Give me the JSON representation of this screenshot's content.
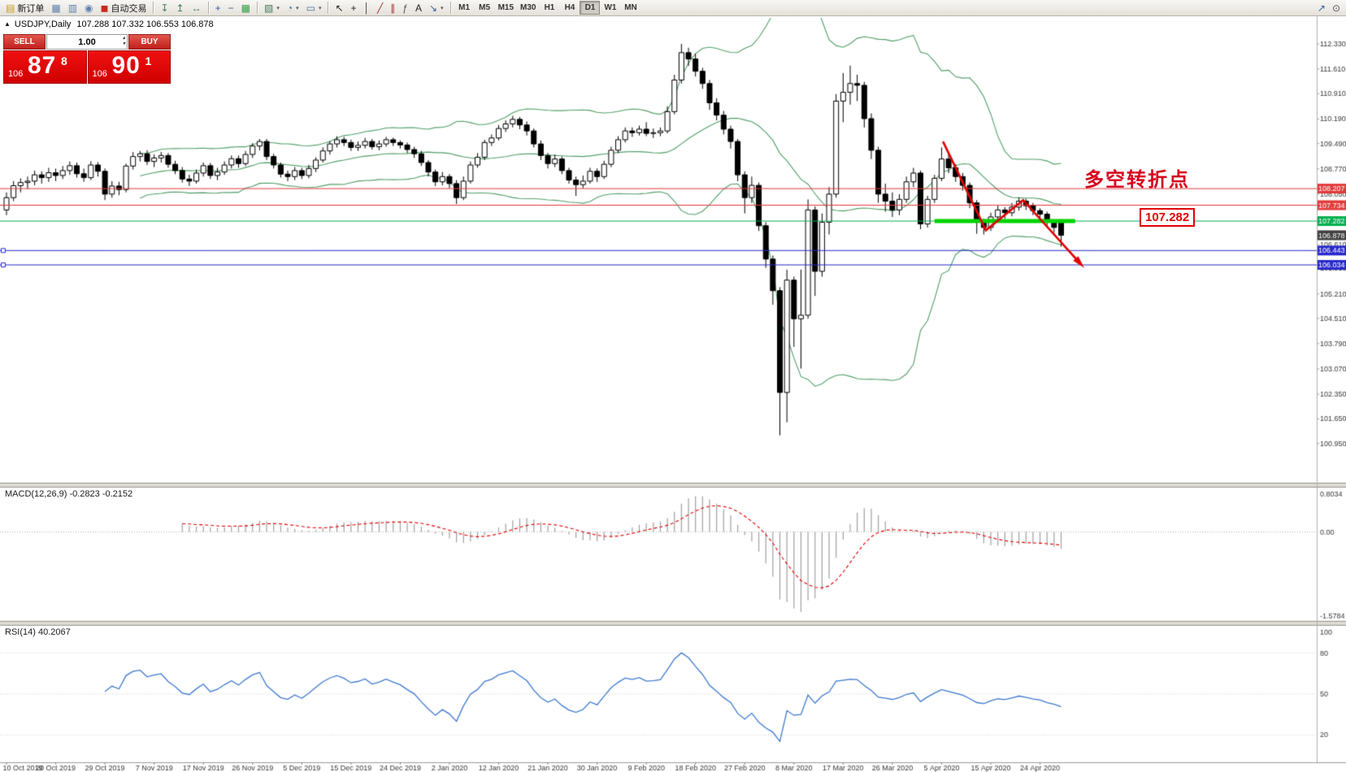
{
  "toolbar": {
    "groups": [
      {
        "name": "file",
        "items": [
          {
            "name": "new-order-button",
            "icon": "new-order-icon",
            "glyph": "▤",
            "color": "#c99a1c",
            "label": "新订单"
          },
          {
            "name": "charts-button",
            "icon": "chart-window-icon",
            "glyph": "▦",
            "color": "#5d7fae"
          },
          {
            "name": "market-watch-button",
            "icon": "market-watch-icon",
            "glyph": "▥",
            "color": "#5d7fae"
          },
          {
            "name": "data-window-button",
            "icon": "data-window-icon",
            "glyph": "◉",
            "color": "#5d7fae"
          },
          {
            "name": "autotrading-button",
            "icon": "autotrading-icon",
            "glyph": "◼",
            "color": "#cc2a1e",
            "label": "自动交易"
          }
        ]
      },
      {
        "name": "indicators",
        "items": [
          {
            "name": "indicators-button",
            "icon": "indicators-icon",
            "glyph": "↧",
            "color": "#4a7d5a"
          },
          {
            "name": "objects-list-button",
            "icon": "objects-list-icon",
            "glyph": "↥",
            "color": "#4a7d5a"
          },
          {
            "name": "windows-button",
            "icon": "windows-icon",
            "glyph": "↔",
            "color": "#4a7d5a"
          }
        ]
      },
      {
        "name": "zoom",
        "items": [
          {
            "name": "zoom-in-button",
            "icon": "zoom-in-icon",
            "glyph": "+",
            "color": "#2e5e9e"
          },
          {
            "name": "zoom-out-button",
            "icon": "zoom-out-icon",
            "glyph": "−",
            "color": "#2e5e9e"
          },
          {
            "name": "tile-windows-button",
            "icon": "tile-windows-icon",
            "glyph": "▦",
            "color": "#2f9e44"
          }
        ]
      },
      {
        "name": "chart-mgmt",
        "items": [
          {
            "name": "new-chart-button",
            "icon": "new-chart-icon",
            "glyph": "▧",
            "color": "#4a7d5a",
            "dropdown": true
          },
          {
            "name": "period-button",
            "icon": "clock-icon",
            "glyph": "◔",
            "color": "#4a6d9a",
            "dropdown": true
          },
          {
            "name": "template-button",
            "icon": "template-icon",
            "glyph": "▭",
            "color": "#4a6d9a",
            "dropdown": true
          }
        ]
      },
      {
        "name": "drawing",
        "items": [
          {
            "name": "cursor-button",
            "icon": "cursor-icon",
            "glyph": "↖",
            "color": "#222222"
          },
          {
            "name": "crosshair-button",
            "icon": "crosshair-icon",
            "glyph": "+",
            "color": "#222222"
          },
          {
            "name": "vertical-line-button",
            "icon": "vertical-line-icon",
            "glyph": "│",
            "color": "#333333"
          },
          {
            "name": "trendline-button",
            "icon": "trendline-icon",
            "glyph": "╱",
            "color": "#a03030"
          },
          {
            "name": "channel-button",
            "icon": "equidistant-channel-icon",
            "glyph": "∥",
            "color": "#a03030"
          },
          {
            "name": "fibonacci-button",
            "icon": "fibonacci-icon",
            "glyph": "ƒ",
            "color": "#555555"
          },
          {
            "name": "text-button",
            "icon": "text-icon",
            "glyph": "A",
            "color": "#222222"
          },
          {
            "name": "arrows-button",
            "icon": "arrows-icon",
            "glyph": "↘",
            "color": "#2e5e9e",
            "dropdown": true
          }
        ]
      }
    ],
    "timeframes": [
      "M1",
      "M5",
      "M15",
      "M30",
      "H1",
      "H4",
      "D1",
      "W1",
      "MN"
    ],
    "active_timeframe": "D1",
    "right_items": [
      {
        "name": "send-button",
        "icon": "send-icon",
        "glyph": "↗",
        "color": "#2e5e9e"
      },
      {
        "name": "search-button",
        "icon": "search-icon",
        "glyph": "⊙",
        "color": "#555555"
      }
    ]
  },
  "icons": {
    "collapse_panel": "▲",
    "spinner_up": "▴",
    "spinner_down": "▾"
  },
  "chart": {
    "title_symbol": "USDJPY,Daily",
    "title_ohlc": "107.288 107.332 106.553 106.878"
  },
  "trade_panel": {
    "sell_label": "SELL",
    "buy_label": "BUY",
    "volume": "1.00",
    "sell_price_prefix": "106",
    "sell_price_main": "87",
    "sell_price_sup": "8",
    "buy_price_prefix": "106",
    "buy_price_main": "90",
    "buy_price_sup": "1"
  },
  "indicators": {
    "macd_header": "MACD(12,26,9) -0.2823 -0.2152",
    "rsi_header": "RSI(14) 40.2067"
  },
  "annotations": {
    "turning_point": "多空转折点",
    "price_callout": "107.282"
  },
  "chart_data": {
    "type": "candlestick",
    "symbol": "USDJPY",
    "timeframe": "Daily",
    "current": {
      "open": 107.288,
      "high": 107.332,
      "low": 106.553,
      "close": 106.878
    },
    "y_axis_labels": [
      112.33,
      111.61,
      110.91,
      110.19,
      109.49,
      108.77,
      108.05,
      107.33,
      106.61,
      105.93,
      105.21,
      104.51,
      103.79,
      103.07,
      102.35,
      101.65,
      100.95
    ],
    "price_levels": {
      "resistance": [
        {
          "price": 108.207,
          "color": "#e23b3b"
        },
        {
          "price": 107.734,
          "color": "#e23b3b"
        }
      ],
      "support_green": {
        "price": 107.282,
        "color": "#00b050"
      },
      "support_blue": [
        {
          "price": 106.443,
          "color": "#2929cc"
        },
        {
          "price": 106.034,
          "color": "#2929cc"
        }
      ],
      "current_price": {
        "price": 106.878,
        "tag_color": "#3f3f3f"
      }
    },
    "bollinger": {
      "period": 20,
      "deviation": 2,
      "color": "#52a06a"
    },
    "macd": {
      "fast": 12,
      "slow": 26,
      "signal": 9,
      "value": -0.2823,
      "signal_value": -0.2152,
      "scale_labels": [
        "0.8034",
        "0.00",
        "-1.5784"
      ],
      "bar_color": "#a0a0a0",
      "signal_color": "#e00000"
    },
    "rsi": {
      "period": 14,
      "value": 40.2067,
      "levels": [
        80,
        50,
        20
      ],
      "scale_labels": [
        "100",
        "80",
        "50",
        "20"
      ],
      "line_color": "#3f7ad1"
    },
    "trend_arrow": {
      "color": "#e00000",
      "points_ip": [
        [
          133.2,
          109.55
        ],
        [
          139.3,
          107.02
        ],
        [
          144.6,
          107.88
        ],
        [
          152.6,
          106.1
        ]
      ]
    },
    "support_segment": {
      "price": 107.282,
      "from_i": 132.0,
      "to_i": 152.0,
      "color": "#00d300"
    },
    "x_ticks": [
      "10 Oct 2019",
      "20 Oct 2019",
      "29 Oct 2019",
      "7 Nov 2019",
      "17 Nov 2019",
      "26 Nov 2019",
      "5 Dec 2019",
      "15 Dec 2019",
      "24 Dec 2019",
      "2 Jan 2020",
      "12 Jan 2020",
      "21 Jan 2020",
      "30 Jan 2020",
      "9 Feb 2020",
      "18 Feb 2020",
      "27 Feb 2020",
      "8 Mar 2020",
      "17 Mar 2020",
      "26 Mar 2020",
      "5 Apr 2020",
      "15 Apr 2020",
      "24 Apr 2020"
    ],
    "x_tick_every": 7,
    "candles": [
      [
        107.6,
        108.1,
        107.45,
        107.95
      ],
      [
        107.95,
        108.42,
        107.85,
        108.29
      ],
      [
        108.29,
        108.5,
        108.1,
        108.38
      ],
      [
        108.38,
        108.55,
        108.2,
        108.42
      ],
      [
        108.42,
        108.72,
        108.3,
        108.6
      ],
      [
        108.6,
        108.7,
        108.35,
        108.52
      ],
      [
        108.52,
        108.8,
        108.4,
        108.66
      ],
      [
        108.66,
        108.78,
        108.42,
        108.58
      ],
      [
        108.58,
        108.85,
        108.48,
        108.72
      ],
      [
        108.72,
        108.98,
        108.6,
        108.86
      ],
      [
        108.86,
        108.95,
        108.52,
        108.63
      ],
      [
        108.63,
        108.78,
        108.4,
        108.52
      ],
      [
        108.52,
        108.99,
        108.45,
        108.88
      ],
      [
        108.88,
        108.96,
        108.55,
        108.7
      ],
      [
        108.7,
        108.78,
        107.88,
        108.05
      ],
      [
        108.05,
        108.42,
        107.95,
        108.28
      ],
      [
        108.28,
        108.4,
        108.02,
        108.18
      ],
      [
        108.18,
        108.92,
        108.1,
        108.85
      ],
      [
        108.85,
        109.25,
        108.75,
        109.12
      ],
      [
        109.12,
        109.28,
        108.98,
        109.2
      ],
      [
        109.2,
        109.3,
        108.88,
        108.98
      ],
      [
        108.98,
        109.18,
        108.82,
        109.08
      ],
      [
        109.08,
        109.25,
        108.95,
        109.15
      ],
      [
        109.15,
        109.22,
        108.8,
        108.9
      ],
      [
        108.9,
        109.0,
        108.62,
        108.72
      ],
      [
        108.72,
        108.82,
        108.38,
        108.48
      ],
      [
        108.48,
        108.6,
        108.28,
        108.42
      ],
      [
        108.42,
        108.75,
        108.35,
        108.65
      ],
      [
        108.65,
        108.95,
        108.55,
        108.86
      ],
      [
        108.86,
        108.94,
        108.48,
        108.58
      ],
      [
        108.58,
        108.8,
        108.45,
        108.68
      ],
      [
        108.68,
        108.98,
        108.6,
        108.88
      ],
      [
        108.88,
        109.15,
        108.78,
        109.06
      ],
      [
        109.06,
        109.15,
        108.8,
        108.92
      ],
      [
        108.92,
        109.28,
        108.85,
        109.18
      ],
      [
        109.18,
        109.5,
        109.08,
        109.42
      ],
      [
        109.42,
        109.62,
        109.3,
        109.55
      ],
      [
        109.55,
        109.62,
        109.02,
        109.12
      ],
      [
        109.12,
        109.2,
        108.78,
        108.88
      ],
      [
        108.88,
        108.95,
        108.52,
        108.62
      ],
      [
        108.62,
        108.72,
        108.42,
        108.55
      ],
      [
        108.55,
        108.82,
        108.45,
        108.72
      ],
      [
        108.72,
        108.8,
        108.48,
        108.58
      ],
      [
        108.58,
        108.88,
        108.5,
        108.78
      ],
      [
        108.78,
        109.1,
        108.68,
        109.02
      ],
      [
        109.02,
        109.38,
        108.95,
        109.28
      ],
      [
        109.28,
        109.56,
        109.18,
        109.48
      ],
      [
        109.48,
        109.7,
        109.38,
        109.6
      ],
      [
        109.6,
        109.68,
        109.42,
        109.52
      ],
      [
        109.52,
        109.6,
        109.28,
        109.38
      ],
      [
        109.38,
        109.55,
        109.28,
        109.44
      ],
      [
        109.44,
        109.65,
        109.35,
        109.55
      ],
      [
        109.55,
        109.62,
        109.32,
        109.4
      ],
      [
        109.4,
        109.58,
        109.3,
        109.48
      ],
      [
        109.48,
        109.68,
        109.4,
        109.6
      ],
      [
        109.6,
        109.66,
        109.42,
        109.52
      ],
      [
        109.52,
        109.58,
        109.35,
        109.45
      ],
      [
        109.45,
        109.52,
        109.22,
        109.32
      ],
      [
        109.32,
        109.4,
        109.08,
        109.2
      ],
      [
        109.2,
        109.28,
        108.85,
        108.95
      ],
      [
        108.95,
        109.02,
        108.55,
        108.68
      ],
      [
        108.68,
        108.75,
        108.28,
        108.4
      ],
      [
        108.4,
        108.68,
        108.3,
        108.55
      ],
      [
        108.55,
        108.62,
        108.22,
        108.35
      ],
      [
        108.35,
        108.45,
        107.77,
        107.95
      ],
      [
        107.95,
        108.55,
        107.88,
        108.42
      ],
      [
        108.42,
        108.98,
        108.35,
        108.88
      ],
      [
        108.88,
        109.22,
        108.8,
        109.1
      ],
      [
        109.1,
        109.6,
        109.02,
        109.52
      ],
      [
        109.52,
        109.75,
        109.42,
        109.65
      ],
      [
        109.65,
        110.02,
        109.58,
        109.92
      ],
      [
        109.92,
        110.15,
        109.82,
        110.05
      ],
      [
        110.05,
        110.28,
        109.95,
        110.18
      ],
      [
        110.18,
        110.25,
        109.9,
        110.02
      ],
      [
        110.02,
        110.12,
        109.72,
        109.85
      ],
      [
        109.85,
        109.92,
        109.38,
        109.48
      ],
      [
        109.48,
        109.58,
        109.02,
        109.15
      ],
      [
        109.15,
        109.22,
        108.78,
        108.92
      ],
      [
        108.92,
        109.18,
        108.82,
        109.05
      ],
      [
        109.05,
        109.12,
        108.62,
        108.72
      ],
      [
        108.72,
        108.8,
        108.35,
        108.45
      ],
      [
        108.45,
        108.55,
        108.0,
        108.32
      ],
      [
        108.32,
        108.58,
        108.22,
        108.42
      ],
      [
        108.42,
        108.8,
        108.35,
        108.7
      ],
      [
        108.7,
        108.78,
        108.4,
        108.55
      ],
      [
        108.55,
        109.0,
        108.48,
        108.9
      ],
      [
        108.9,
        109.4,
        108.82,
        109.3
      ],
      [
        109.3,
        109.7,
        109.22,
        109.6
      ],
      [
        109.6,
        109.95,
        109.52,
        109.85
      ],
      [
        109.85,
        109.95,
        109.68,
        109.8
      ],
      [
        109.8,
        110.0,
        109.72,
        109.9
      ],
      [
        109.9,
        110.1,
        109.7,
        109.78
      ],
      [
        109.78,
        109.92,
        109.65,
        109.8
      ],
      [
        109.8,
        109.95,
        109.7,
        109.85
      ],
      [
        109.85,
        110.55,
        109.78,
        110.4
      ],
      [
        110.4,
        111.45,
        110.32,
        111.3
      ],
      [
        111.3,
        112.33,
        111.2,
        112.08
      ],
      [
        112.08,
        112.22,
        111.7,
        111.9
      ],
      [
        111.9,
        112.05,
        111.4,
        111.55
      ],
      [
        111.55,
        111.65,
        111.05,
        111.2
      ],
      [
        111.2,
        111.3,
        110.45,
        110.65
      ],
      [
        110.65,
        110.78,
        110.15,
        110.3
      ],
      [
        110.3,
        110.42,
        109.75,
        109.9
      ],
      [
        109.9,
        110.0,
        109.35,
        109.55
      ],
      [
        109.55,
        109.62,
        108.42,
        108.6
      ],
      [
        108.6,
        108.7,
        107.5,
        107.95
      ],
      [
        107.95,
        108.55,
        107.8,
        108.3
      ],
      [
        108.3,
        108.38,
        107.0,
        107.15
      ],
      [
        107.15,
        107.25,
        105.95,
        106.2
      ],
      [
        106.2,
        106.3,
        104.9,
        105.3
      ],
      [
        105.3,
        105.4,
        101.18,
        102.4
      ],
      [
        102.4,
        105.9,
        101.55,
        105.6
      ],
      [
        105.6,
        105.7,
        103.7,
        104.5
      ],
      [
        104.5,
        105.9,
        103.08,
        104.6
      ],
      [
        104.6,
        107.9,
        104.5,
        107.6
      ],
      [
        107.6,
        107.7,
        105.15,
        105.85
      ],
      [
        105.85,
        107.5,
        105.7,
        107.25
      ],
      [
        107.25,
        108.25,
        106.9,
        108.05
      ],
      [
        108.05,
        110.9,
        107.95,
        110.7
      ],
      [
        110.7,
        111.5,
        110.1,
        110.95
      ],
      [
        110.95,
        111.71,
        110.6,
        111.2
      ],
      [
        111.2,
        111.45,
        110.7,
        111.15
      ],
      [
        111.15,
        111.25,
        109.95,
        110.2
      ],
      [
        110.2,
        110.35,
        109.05,
        109.3
      ],
      [
        109.3,
        109.4,
        107.8,
        108.05
      ],
      [
        108.05,
        108.35,
        107.55,
        107.85
      ],
      [
        107.85,
        108.1,
        107.4,
        107.6
      ],
      [
        107.6,
        108.05,
        107.45,
        107.9
      ],
      [
        107.9,
        108.55,
        107.8,
        108.4
      ],
      [
        108.4,
        108.8,
        108.25,
        108.65
      ],
      [
        108.65,
        108.72,
        107.05,
        107.2
      ],
      [
        107.2,
        108.0,
        107.1,
        107.9
      ],
      [
        107.9,
        108.6,
        107.8,
        108.5
      ],
      [
        108.5,
        109.38,
        108.42,
        109.05
      ],
      [
        109.05,
        109.25,
        108.65,
        108.8
      ],
      [
        108.8,
        108.9,
        108.4,
        108.55
      ],
      [
        108.55,
        108.65,
        108.15,
        108.3
      ],
      [
        108.3,
        108.38,
        107.65,
        107.8
      ],
      [
        107.8,
        107.88,
        106.92,
        107.25
      ],
      [
        107.25,
        107.35,
        106.9,
        107.1
      ],
      [
        107.1,
        107.52,
        107.0,
        107.4
      ],
      [
        107.4,
        107.72,
        107.3,
        107.6
      ],
      [
        107.6,
        107.68,
        107.35,
        107.52
      ],
      [
        107.52,
        107.8,
        107.42,
        107.68
      ],
      [
        107.68,
        107.95,
        107.58,
        107.85
      ],
      [
        107.85,
        107.92,
        107.6,
        107.72
      ],
      [
        107.72,
        107.8,
        107.45,
        107.58
      ],
      [
        107.58,
        107.65,
        107.35,
        107.48
      ],
      [
        107.48,
        107.55,
        107.1,
        107.25
      ],
      [
        107.25,
        107.32,
        106.95,
        107.1
      ],
      [
        107.288,
        107.332,
        106.553,
        106.878
      ]
    ]
  }
}
